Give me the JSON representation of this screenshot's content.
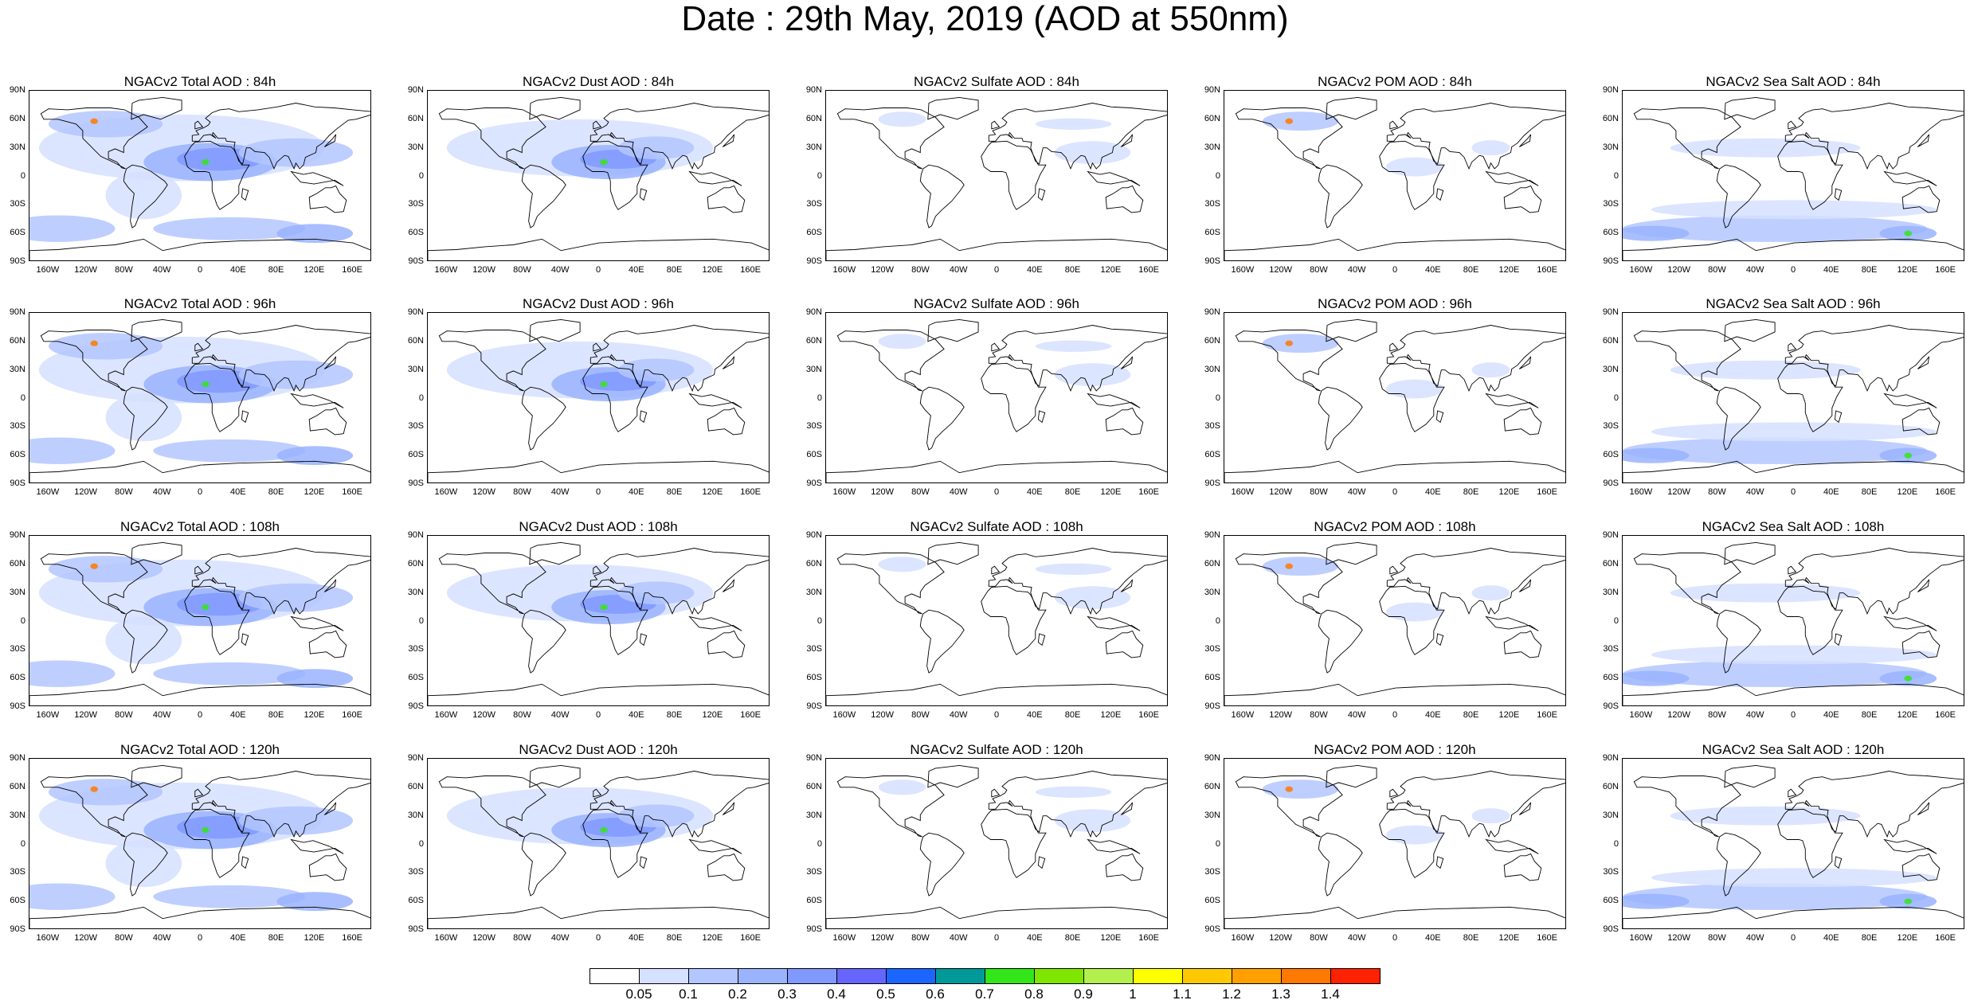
{
  "title": "Date : 29th May, 2019 (AOD at 550nm)",
  "lat_labels": [
    "90N",
    "60N",
    "30N",
    "0",
    "30S",
    "60S",
    "90S"
  ],
  "lon_labels": [
    "160W",
    "120W",
    "80W",
    "40W",
    "0",
    "40E",
    "80E",
    "120E",
    "160E"
  ],
  "lon_values": [
    -160,
    -120,
    -80,
    -40,
    0,
    40,
    80,
    120,
    160
  ],
  "lat_values": [
    90,
    60,
    30,
    0,
    -30,
    -60,
    -90
  ],
  "panels": [
    {
      "title": "NGACv2 Total AOD : 84h",
      "field": "total"
    },
    {
      "title": "NGACv2 Dust AOD : 84h",
      "field": "dust"
    },
    {
      "title": "NGACv2 Sulfate AOD : 84h",
      "field": "sulfate"
    },
    {
      "title": "NGACv2 POM AOD : 84h",
      "field": "pom"
    },
    {
      "title": "NGACv2 Sea Salt AOD : 84h",
      "field": "seasalt"
    },
    {
      "title": "NGACv2 Total AOD : 96h",
      "field": "total"
    },
    {
      "title": "NGACv2 Dust AOD : 96h",
      "field": "dust"
    },
    {
      "title": "NGACv2 Sulfate AOD : 96h",
      "field": "sulfate"
    },
    {
      "title": "NGACv2 POM AOD : 96h",
      "field": "pom"
    },
    {
      "title": "NGACv2 Sea Salt AOD : 96h",
      "field": "seasalt"
    },
    {
      "title": "NGACv2 Total AOD : 108h",
      "field": "total"
    },
    {
      "title": "NGACv2 Dust AOD : 108h",
      "field": "dust"
    },
    {
      "title": "NGACv2 Sulfate AOD : 108h",
      "field": "sulfate"
    },
    {
      "title": "NGACv2 POM AOD : 108h",
      "field": "pom"
    },
    {
      "title": "NGACv2 Sea Salt AOD : 108h",
      "field": "seasalt"
    },
    {
      "title": "NGACv2 Total AOD : 120h",
      "field": "total"
    },
    {
      "title": "NGACv2 Dust AOD : 120h",
      "field": "dust"
    },
    {
      "title": "NGACv2 Sulfate AOD : 120h",
      "field": "sulfate"
    },
    {
      "title": "NGACv2 POM AOD : 120h",
      "field": "pom"
    },
    {
      "title": "NGACv2 Sea Salt  AOD : 120h",
      "field": "seasalt"
    }
  ],
  "colorbar": {
    "labels": [
      "0.05",
      "0.1",
      "0.2",
      "0.3",
      "0.4",
      "0.5",
      "0.6",
      "0.7",
      "0.8",
      "0.9",
      "1",
      "1.1",
      "1.2",
      "1.3",
      "1.4"
    ],
    "colors": [
      "#ffffff",
      "#d6e0ff",
      "#b3c6ff",
      "#99b3ff",
      "#8099ff",
      "#6666ff",
      "#1a66ff",
      "#009999",
      "#33e61a",
      "#80e600",
      "#b3f04d",
      "#ffff00",
      "#ffc800",
      "#ffa000",
      "#ff7800",
      "#ff2200"
    ]
  }
}
